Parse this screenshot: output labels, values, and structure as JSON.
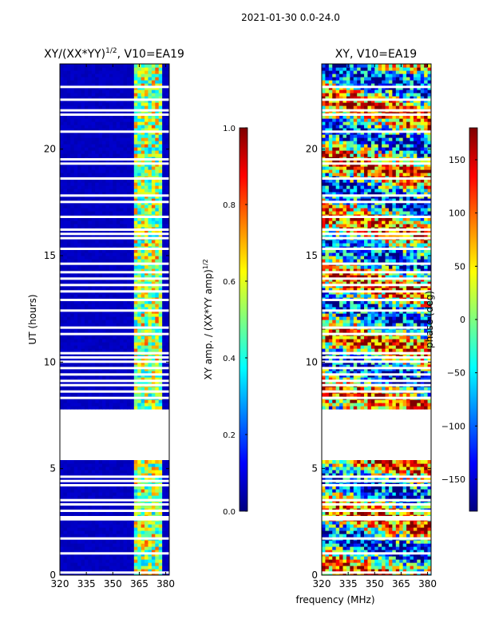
{
  "figure": {
    "suptitle": "2021-01-30 0.0-24.0",
    "shared_xlabel": "frequency (MHz)"
  },
  "colors": {
    "jet_stops": [
      "#00007f",
      "#0000ff",
      "#007fff",
      "#00ffff",
      "#7fff7f",
      "#ffff00",
      "#ff7f00",
      "#ff0000",
      "#7f0000"
    ],
    "background": "#00008f",
    "gap": "#ffffff"
  },
  "chart_data": [
    {
      "type": "heatmap",
      "title": "XY/(XX*YY)",
      "title_sup": "1/2",
      "title_suffix": ", V10=EA19",
      "xlabel": "",
      "ylabel": "UT (hours)",
      "xlim": [
        320,
        382
      ],
      "ylim": [
        0,
        24
      ],
      "xticks": [
        "320",
        "335",
        "350",
        "365",
        "380"
      ],
      "xtick_values": [
        320,
        335,
        350,
        365,
        380
      ],
      "yticks": [
        "0",
        "5",
        "10",
        "15",
        "20"
      ],
      "ytick_values": [
        0,
        5,
        10,
        15,
        20
      ],
      "colorbar": {
        "label": "XY amp. / (XX*YY amp)",
        "label_sup": "1/2",
        "range": [
          0.0,
          1.0
        ],
        "ticks": [
          "0.0",
          "0.2",
          "0.4",
          "0.6",
          "0.8",
          "1.0"
        ],
        "tick_values": [
          0.0,
          0.2,
          0.4,
          0.6,
          0.8,
          1.0
        ]
      },
      "data_summary": {
        "low_amplitude_band_MHz": [
          320,
          362
        ],
        "low_amplitude_value": 0.05,
        "high_amplitude_band_MHz": [
          362,
          378
        ],
        "high_amplitude_value_range": [
          0.3,
          0.8
        ],
        "no_data_interval_hours": [
          5.5,
          7.7
        ]
      }
    },
    {
      "type": "heatmap",
      "title": "XY, V10=EA19",
      "xlabel": "frequency (MHz)",
      "ylabel": "",
      "xlim": [
        320,
        382
      ],
      "ylim": [
        0,
        24
      ],
      "xticks": [
        "320",
        "335",
        "350",
        "365",
        "380"
      ],
      "xtick_values": [
        320,
        335,
        350,
        365,
        380
      ],
      "yticks": [
        "0",
        "5",
        "10",
        "15",
        "20"
      ],
      "ytick_values": [
        0,
        5,
        10,
        15,
        20
      ],
      "colorbar": {
        "label": "phase (deg)",
        "range": [
          -180,
          180
        ],
        "ticks": [
          "150",
          "100",
          "50",
          "0",
          "−50",
          "−100",
          "−150"
        ],
        "tick_values": [
          150,
          100,
          50,
          0,
          -50,
          -100,
          -150
        ]
      },
      "data_summary": {
        "value_range_deg": [
          -180,
          180
        ],
        "no_data_interval_hours": [
          5.5,
          7.7
        ]
      }
    }
  ],
  "gap_rows_hours": [
    0.1,
    1.0,
    1.7,
    2.6,
    2.7,
    3.0,
    3.3,
    3.5,
    4.2,
    4.4,
    4.6,
    8.3,
    8.6,
    8.9,
    9.1,
    9.4,
    9.7,
    10.0,
    10.2,
    10.4,
    11.3,
    11.6,
    12.4,
    12.9,
    13.3,
    13.6,
    13.9,
    14.2,
    14.6,
    15.3,
    15.8,
    16.0,
    16.2,
    16.8,
    17.5,
    17.8,
    18.6,
    19.3,
    19.5,
    20.8,
    21.6,
    21.8,
    22.3,
    22.9
  ]
}
